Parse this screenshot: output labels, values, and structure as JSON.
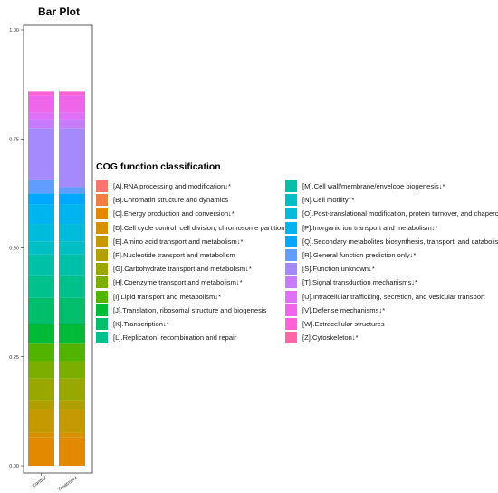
{
  "chart_data": {
    "type": "bar",
    "title": "Bar Plot",
    "stacked": true,
    "categories": [
      "Control",
      "Treatment"
    ],
    "ylim": [
      0,
      1
    ],
    "yticks": [
      "0.00",
      "0.25",
      "0.50",
      "0.75",
      "1.00"
    ],
    "grid": false,
    "legend": {
      "title": "COG function classification",
      "placement": "right"
    },
    "series": [
      {
        "name": "[A].RNA processing and modification↓*",
        "color": "#F8766D",
        "values": [
          0.0,
          0.0
        ]
      },
      {
        "name": "[B].Chromatin structure and dynamics",
        "color": "#EE8044",
        "values": [
          0.0,
          0.0
        ]
      },
      {
        "name": "[C].Energy production and conversion↓*",
        "color": "#E38900",
        "values": [
          0.065,
          0.065
        ]
      },
      {
        "name": "[D].Cell cycle control, cell division, chromosome partitioning",
        "color": "#D59100",
        "values": [
          0.01,
          0.01
        ]
      },
      {
        "name": "[E].Amino acid transport and metabolism↓*",
        "color": "#C49A00",
        "values": [
          0.055,
          0.055
        ]
      },
      {
        "name": "[F].Nucleotide transport and metabolism",
        "color": "#B0A100",
        "values": [
          0.02,
          0.02
        ]
      },
      {
        "name": "[G].Carbohydrate transport and metabolism↓*",
        "color": "#99A800",
        "values": [
          0.05,
          0.05
        ]
      },
      {
        "name": "[H].Coenzyme transport and metabolism↓*",
        "color": "#7CAE00",
        "values": [
          0.04,
          0.04
        ]
      },
      {
        "name": "[I].Lipid transport and metabolism↓*",
        "color": "#53B400",
        "values": [
          0.04,
          0.04
        ]
      },
      {
        "name": "[J].Translation, ribosomal structure and biogenesis",
        "color": "#00BA38",
        "values": [
          0.045,
          0.045
        ]
      },
      {
        "name": "[K].Transcription↓*",
        "color": "#00BE6C",
        "values": [
          0.06,
          0.06
        ]
      },
      {
        "name": "[L].Replication, recombination and repair",
        "color": "#00C08B",
        "values": [
          0.05,
          0.05
        ]
      },
      {
        "name": "[M].Cell wall/membrane/envelope biogenesis↓*",
        "color": "#00C1A7",
        "values": [
          0.05,
          0.05
        ]
      },
      {
        "name": "[N].Cell motility↑*",
        "color": "#00BFC4",
        "values": [
          0.03,
          0.03
        ]
      },
      {
        "name": "[O].Post-translational modification, protein turnover, and chaperones",
        "color": "#00BBDA",
        "values": [
          0.04,
          0.04
        ]
      },
      {
        "name": "[P].Inorganic ion transport and metabolism↓*",
        "color": "#00B4EF",
        "values": [
          0.045,
          0.045
        ]
      },
      {
        "name": "[Q].Secondary metabolites biosynthesis, transport, and catabolism↓*",
        "color": "#00A9FF",
        "values": [
          0.025,
          0.025
        ]
      },
      {
        "name": "[R].General function prediction only↓*",
        "color": "#619CFF",
        "values": [
          0.03,
          0.015
        ]
      },
      {
        "name": "[S].Function unknown↓*",
        "color": "#A58AFF",
        "values": [
          0.12,
          0.135
        ]
      },
      {
        "name": "[T].Signal transduction mechanisms↓*",
        "color": "#C77CFF",
        "values": [
          0.02,
          0.02
        ]
      },
      {
        "name": "[U].Intracellular trafficking, secretion, and vesicular transport",
        "color": "#DF70F8",
        "values": [
          0.015,
          0.015
        ]
      },
      {
        "name": "[V].Defense mechanisms↓*",
        "color": "#F066EA",
        "values": [
          0.04,
          0.04
        ]
      },
      {
        "name": "[W].Extracellular structures",
        "color": "#FC61D5",
        "values": [
          0.01,
          0.01
        ]
      },
      {
        "name": "[Z].Cytoskeleton↓*",
        "color": "#FF66A8",
        "values": [
          0.0,
          0.0
        ]
      }
    ]
  }
}
